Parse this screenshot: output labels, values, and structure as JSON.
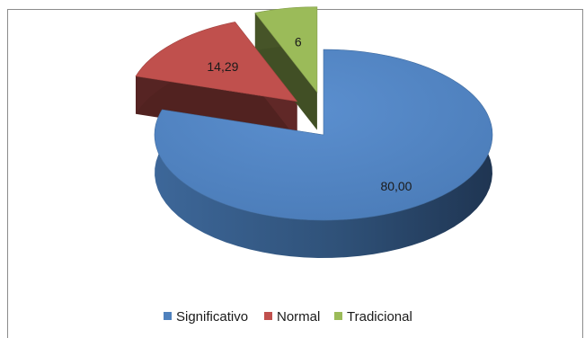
{
  "chart_data": {
    "type": "pie",
    "style": "3d-exploded",
    "categories": [
      "Significativo",
      "Normal",
      "Tradicional"
    ],
    "values": [
      80.0,
      14.29,
      6
    ],
    "data_labels": [
      "80,00",
      "14,29",
      "6"
    ],
    "colors": [
      "#4f81bd",
      "#c0504d",
      "#9bbb59"
    ],
    "legend": {
      "position": "bottom",
      "entries": [
        "Significativo",
        "Normal",
        "Tradicional"
      ]
    }
  }
}
